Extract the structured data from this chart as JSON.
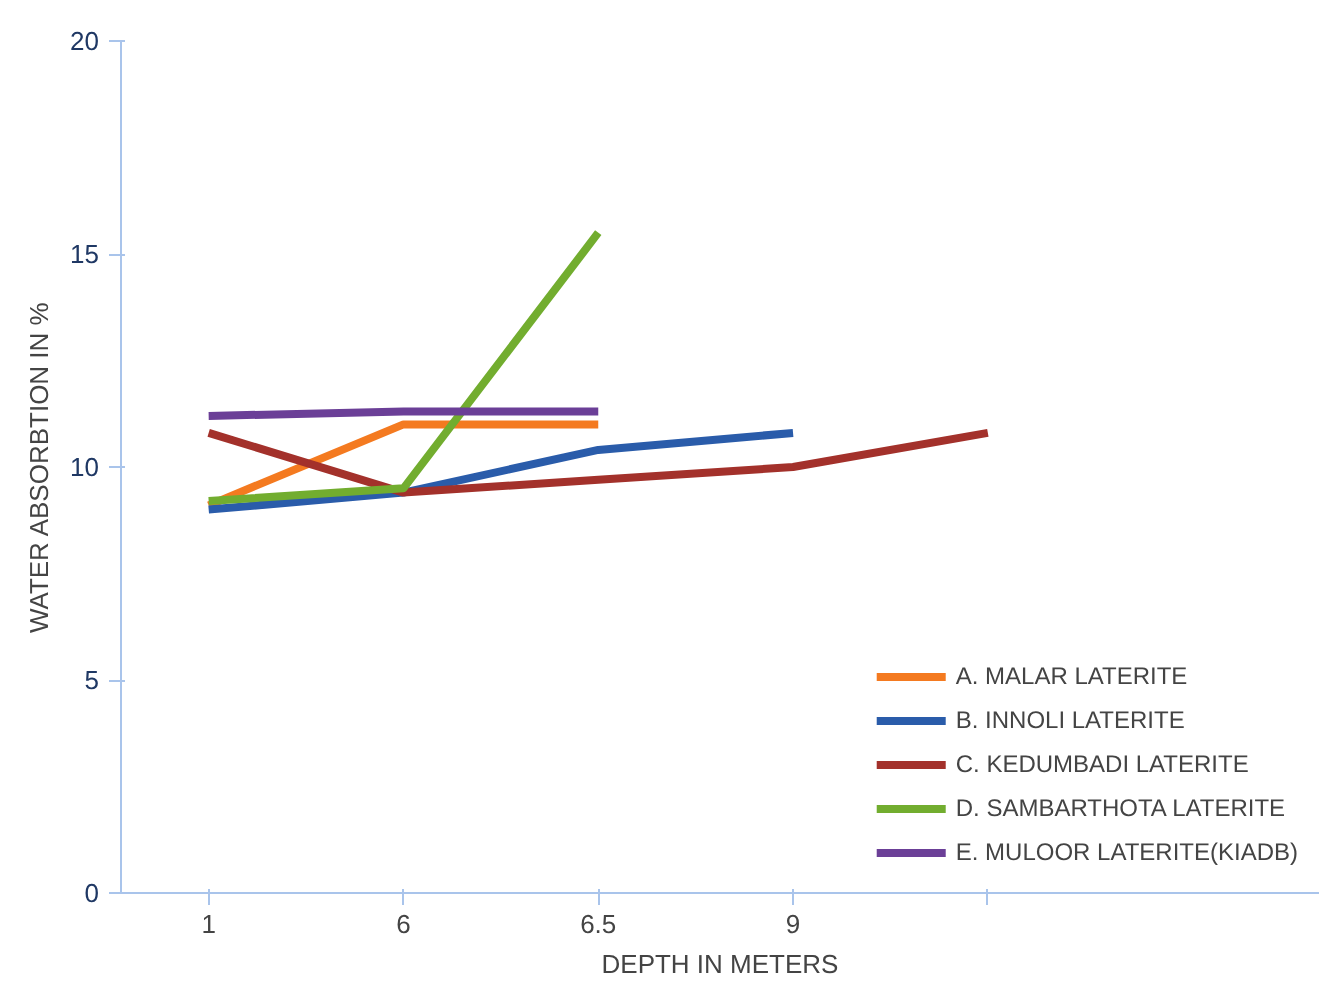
{
  "chart_data": {
    "type": "line",
    "xlabel": "DEPTH IN METERS",
    "ylabel": "WATER ABSORBTION IN %",
    "categories": [
      "1",
      "6",
      "6.5",
      "9",
      null
    ],
    "ylim": [
      0,
      20
    ],
    "yticks": [
      0,
      5,
      10,
      15,
      20
    ],
    "grid": false,
    "legend": "bottom right",
    "marker": "none",
    "line_style": "solid",
    "series": [
      {
        "name": "A. MALAR LATERITE",
        "color": "#f47a20",
        "values": [
          9.1,
          11.0,
          11.0,
          null,
          null
        ]
      },
      {
        "name": "B. INNOLI LATERITE",
        "color": "#2a5caa",
        "values": [
          9.0,
          9.4,
          10.4,
          10.8,
          null
        ]
      },
      {
        "name": "C. KEDUMBADI LATERITE",
        "color": "#a3312b",
        "values": [
          10.8,
          9.4,
          9.7,
          10.0,
          10.8
        ]
      },
      {
        "name": "D. SAMBARTHOTA LATERITE",
        "color": "#72ad2f",
        "values": [
          9.2,
          9.5,
          15.5,
          null,
          null
        ]
      },
      {
        "name": "E. MULOOR LATERITE(KIADB)",
        "color": "#6b3f97",
        "values": [
          11.2,
          11.3,
          11.3,
          null,
          null
        ]
      }
    ]
  }
}
